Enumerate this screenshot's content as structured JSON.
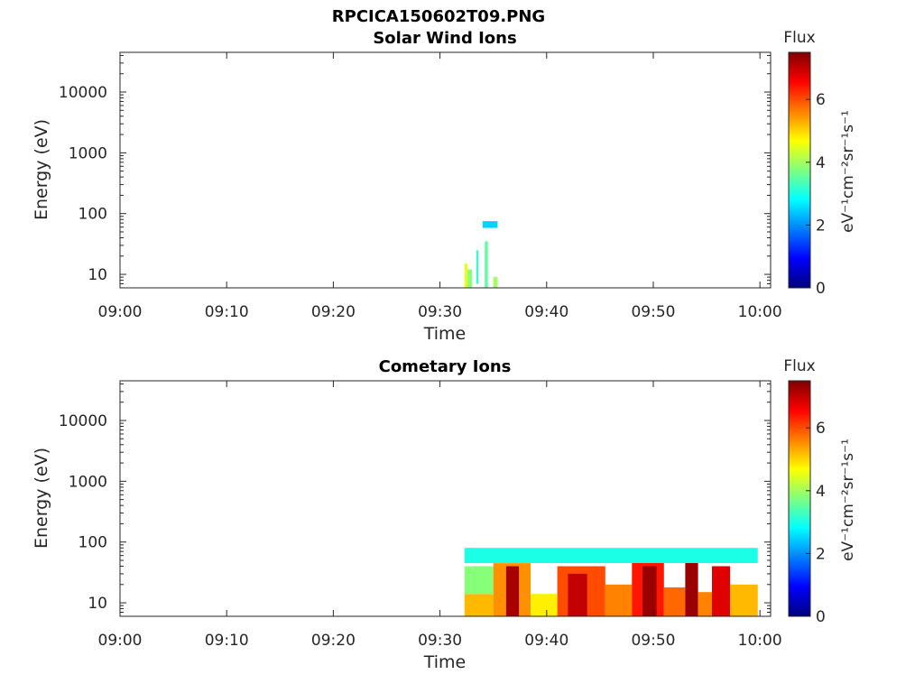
{
  "figure": {
    "filename": "RPCICA150602T09.PNG"
  },
  "colorbar": {
    "title": "Flux",
    "label": "eV⁻¹cm⁻²sr⁻¹s⁻¹",
    "ticks": [
      "0",
      "2",
      "4",
      "6"
    ],
    "range": [
      0,
      7.5
    ],
    "colormap": "jet"
  },
  "chart_data": [
    {
      "type": "heatmap",
      "title": "Solar Wind Ions",
      "xlabel": "Time",
      "ylabel": "Energy (eV)",
      "x_ticks": [
        "09:00",
        "09:10",
        "09:20",
        "09:30",
        "09:40",
        "09:50",
        "10:00"
      ],
      "y_ticks": [
        "10",
        "100",
        "1000",
        "10000"
      ],
      "y_scale": "log",
      "xlim": [
        "09:00",
        "10:01"
      ],
      "ylim": [
        6,
        45000
      ],
      "grid": false,
      "flux_patches": [
        {
          "t0": "09:32.3",
          "t1": "09:32.6",
          "e0": 6,
          "e1": 15,
          "flux": 4.5
        },
        {
          "t0": "09:32.6",
          "t1": "09:33.0",
          "e0": 6,
          "e1": 12,
          "flux": 3.8
        },
        {
          "t0": "09:33.4",
          "t1": "09:33.6",
          "e0": 7,
          "e1": 25,
          "flux": 3.2
        },
        {
          "t0": "09:34.2",
          "t1": "09:34.5",
          "e0": 6,
          "e1": 35,
          "flux": 3.5
        },
        {
          "t0": "09:35.0",
          "t1": "09:35.4",
          "e0": 6,
          "e1": 9,
          "flux": 4.0
        },
        {
          "t0": "09:34.0",
          "t1": "09:35.4",
          "e0": 58,
          "e1": 75,
          "flux": 2.5
        }
      ]
    },
    {
      "type": "heatmap",
      "title": "Cometary Ions",
      "xlabel": "Time",
      "ylabel": "Energy (eV)",
      "x_ticks": [
        "09:00",
        "09:10",
        "09:20",
        "09:30",
        "09:40",
        "09:50",
        "10:00"
      ],
      "y_ticks": [
        "10",
        "100",
        "1000",
        "10000"
      ],
      "y_scale": "log",
      "xlim": [
        "09:00",
        "10:01"
      ],
      "ylim": [
        6,
        45000
      ],
      "grid": false,
      "flux_patches": [
        {
          "t0": "09:32.3",
          "t1": "09:35.0",
          "e0": 6,
          "e1": 14,
          "flux": 5.2
        },
        {
          "t0": "09:32.3",
          "t1": "09:35.0",
          "e0": 14,
          "e1": 40,
          "flux": 3.8
        },
        {
          "t0": "09:35.0",
          "t1": "09:38.5",
          "e0": 6,
          "e1": 45,
          "flux": 5.5
        },
        {
          "t0": "09:36.2",
          "t1": "09:37.4",
          "e0": 6,
          "e1": 40,
          "flux": 7.2
        },
        {
          "t0": "09:38.5",
          "t1": "09:41.0",
          "e0": 6,
          "e1": 14,
          "flux": 4.8
        },
        {
          "t0": "09:41.0",
          "t1": "09:45.5",
          "e0": 6,
          "e1": 40,
          "flux": 6.0
        },
        {
          "t0": "09:42.0",
          "t1": "09:43.8",
          "e0": 6,
          "e1": 30,
          "flux": 7.0
        },
        {
          "t0": "09:45.5",
          "t1": "09:48.0",
          "e0": 6,
          "e1": 20,
          "flux": 5.6
        },
        {
          "t0": "09:48.0",
          "t1": "09:51.0",
          "e0": 6,
          "e1": 60,
          "flux": 6.4
        },
        {
          "t0": "09:49.0",
          "t1": "09:50.3",
          "e0": 6,
          "e1": 40,
          "flux": 7.3
        },
        {
          "t0": "09:51.0",
          "t1": "09:53.0",
          "e0": 6,
          "e1": 18,
          "flux": 5.8
        },
        {
          "t0": "09:53.0",
          "t1": "09:54.2",
          "e0": 6,
          "e1": 65,
          "flux": 7.3
        },
        {
          "t0": "09:54.2",
          "t1": "09:55.5",
          "e0": 6,
          "e1": 15,
          "flux": 5.6
        },
        {
          "t0": "09:55.5",
          "t1": "09:57.2",
          "e0": 6,
          "e1": 40,
          "flux": 6.8
        },
        {
          "t0": "09:57.2",
          "t1": "09:59.8",
          "e0": 6,
          "e1": 20,
          "flux": 5.2
        },
        {
          "t0": "09:32.3",
          "t1": "09:59.8",
          "e0": 45,
          "e1": 80,
          "flux": 3.0
        }
      ]
    }
  ]
}
